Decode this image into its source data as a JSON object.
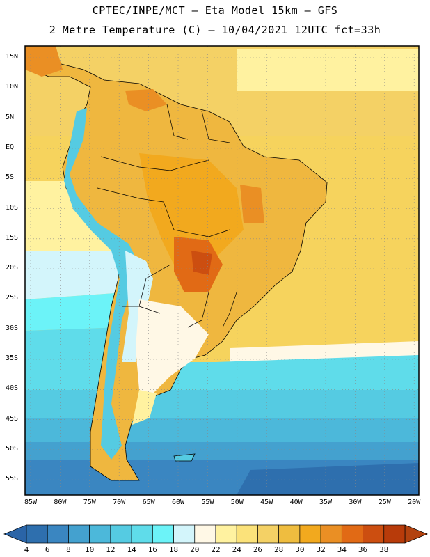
{
  "header": {
    "title_line1": "CPTEC/INPE/MCT –  Eta Model 15km – GFS",
    "title_line2": "2 Metre Temperature (C) – 10/04/2021 12UTC fct=33h"
  },
  "axes": {
    "lat_labels": [
      "15N",
      "10N",
      "5N",
      "EQ",
      "5S",
      "10S",
      "15S",
      "20S",
      "25S",
      "30S",
      "35S",
      "40S",
      "45S",
      "50S",
      "55S"
    ],
    "lon_labels": [
      "85W",
      "80W",
      "75W",
      "70W",
      "65W",
      "60W",
      "55W",
      "50W",
      "45W",
      "40W",
      "35W",
      "30W",
      "25W",
      "20W"
    ]
  },
  "colorbar": {
    "labels": [
      "4",
      "6",
      "8",
      "10",
      "12",
      "14",
      "16",
      "18",
      "20",
      "22",
      "24",
      "26",
      "28",
      "30",
      "32",
      "34",
      "36",
      "38"
    ],
    "colors": [
      "#2e6fae",
      "#3a86c1",
      "#44a1cf",
      "#4cb8da",
      "#55cbe2",
      "#5fdcea",
      "#6cf3f8",
      "#d3f5fb",
      "#fff8e6",
      "#fff2a0",
      "#fbe27a",
      "#f4d165",
      "#efbd3f",
      "#f2a91e",
      "#ea8f24",
      "#e16a15",
      "#cc4e10",
      "#b83b0a"
    ],
    "low_color": "#2a64a7",
    "high_color": "#b3420f"
  },
  "legend_colors": {
    "ocean_cool": "#3b8ac4",
    "ocean_warm": "#f6d35d",
    "land_warm": "#efb73f",
    "land_hot": "#d96a1c",
    "andes_cold": "#55cbe2",
    "border": "#000000"
  }
}
